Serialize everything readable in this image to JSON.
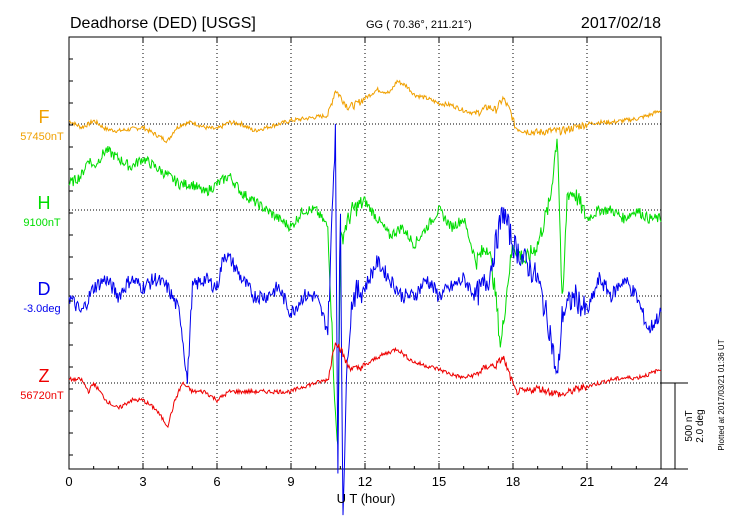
{
  "chart_data": {
    "type": "line",
    "title": "Deadhorse (DED)  [USGS]",
    "coords": "GG ( 70.36°, 211.21°)",
    "date": "2017/02/18",
    "xlabel": "U T (hour)",
    "xlim": [
      0,
      24
    ],
    "xticks": [
      0,
      3,
      6,
      9,
      12,
      15,
      18,
      21,
      24
    ],
    "xtick_labels": [
      "0",
      "3",
      "6",
      "9",
      "12",
      "15",
      "18",
      "21",
      "24"
    ],
    "grid": "dotted vertical lines every 3 hours; dotted horizontal baseline per component",
    "scale_bar_label_1": "500 nT",
    "scale_bar_label_2": "2.0 deg",
    "plot_note": "Plotted at 2017/03/21 01:36 UT",
    "series": [
      {
        "name": "F",
        "baseline_label": "57450nT",
        "color": "#f0a000",
        "x": [
          0,
          0.5,
          0.8,
          1,
          1.5,
          2,
          2.5,
          3,
          3.5,
          4,
          4.3,
          4.6,
          5,
          5.5,
          6,
          6.5,
          7,
          7.5,
          8,
          8.5,
          9,
          9.5,
          10,
          10.5,
          10.8,
          11,
          11.3,
          11.6,
          12,
          12.5,
          13,
          13.3,
          13.7,
          14,
          14.5,
          15,
          15.5,
          16,
          16.5,
          17,
          17.3,
          17.6,
          17.9,
          18.1,
          18.5,
          19,
          19.5,
          20,
          20.5,
          21,
          21.5,
          22,
          22.5,
          23,
          23.5,
          24
        ],
        "y": [
          20,
          -20,
          0,
          20,
          -30,
          -40,
          -30,
          -20,
          -60,
          -100,
          -30,
          0,
          10,
          -20,
          -30,
          10,
          0,
          -40,
          -20,
          0,
          20,
          30,
          40,
          50,
          200,
          160,
          100,
          110,
          150,
          200,
          180,
          250,
          220,
          170,
          150,
          120,
          110,
          80,
          60,
          100,
          80,
          150,
          70,
          -20,
          -40,
          -50,
          -40,
          -40,
          -20,
          0,
          10,
          10,
          20,
          30,
          50,
          80
        ]
      },
      {
        "name": "H",
        "baseline_label": "9100nT",
        "color": "#00dd00",
        "x": [
          0,
          0.5,
          0.8,
          1,
          1.5,
          2,
          2.5,
          3,
          3.5,
          4,
          4.5,
          5,
          5.5,
          6,
          6.5,
          7,
          7.5,
          8,
          8.5,
          9,
          9.5,
          10,
          10.5,
          10.8,
          10.9,
          11,
          11.2,
          11.5,
          12,
          12.5,
          13,
          13.5,
          14,
          14.5,
          15,
          15.5,
          16,
          16.5,
          17,
          17.3,
          17.5,
          17.8,
          18,
          18.5,
          19,
          19.5,
          19.8,
          20,
          20.2,
          20.5,
          21,
          21.5,
          22,
          22.5,
          23,
          23.5,
          24
        ],
        "y": [
          150,
          200,
          300,
          250,
          350,
          300,
          250,
          300,
          250,
          200,
          150,
          150,
          100,
          150,
          200,
          100,
          50,
          0,
          -50,
          -100,
          0,
          0,
          -100,
          -1200,
          -1400,
          -200,
          -100,
          0,
          50,
          -50,
          -150,
          -100,
          -200,
          -100,
          0,
          -100,
          -50,
          -300,
          -200,
          -500,
          -800,
          -400,
          -200,
          -300,
          -200,
          50,
          450,
          -600,
          100,
          100,
          -50,
          0,
          0,
          -50,
          0,
          -50,
          -50
        ]
      },
      {
        "name": "D",
        "baseline_label": "-3.0deg",
        "color": "#0000ee",
        "x": [
          0,
          0.5,
          1,
          1.5,
          2,
          2.5,
          3,
          3.5,
          4,
          4.5,
          4.8,
          5,
          5.5,
          6,
          6.3,
          6.6,
          7,
          7.5,
          8,
          8.5,
          9,
          9.5,
          10,
          10.5,
          10.8,
          10.9,
          11,
          11.1,
          11.3,
          11.5,
          12,
          12.5,
          13,
          13.5,
          14,
          14.5,
          15,
          15.5,
          16,
          16.5,
          17,
          17.3,
          17.6,
          18,
          18.5,
          19,
          19.5,
          19.8,
          20,
          20.5,
          21,
          21.5,
          22,
          22.5,
          23,
          23.5,
          24
        ],
        "y": [
          0,
          -0.4,
          0.2,
          0.4,
          0,
          0.4,
          0.2,
          0.4,
          0.2,
          -0.4,
          -2.0,
          0.2,
          0.4,
          0.2,
          1.0,
          0.8,
          0.4,
          0,
          0,
          0.2,
          -0.4,
          0,
          0,
          -0.8,
          4.0,
          -4.0,
          2.4,
          -5.0,
          -1.2,
          0,
          0.2,
          0.8,
          0.4,
          0,
          0,
          0.4,
          0,
          0.2,
          0.4,
          0,
          0.4,
          1.2,
          2.0,
          1.2,
          0.8,
          0.4,
          -0.8,
          -2.0,
          -0.4,
          0,
          -0.4,
          0.4,
          0,
          0.4,
          0,
          -0.8,
          -0.4
        ]
      },
      {
        "name": "Z",
        "baseline_label": "56720nT",
        "color": "#ee0000",
        "x": [
          0,
          0.5,
          0.8,
          1,
          1.5,
          2,
          2.5,
          3,
          3.5,
          4,
          4.3,
          4.6,
          5,
          5.5,
          6,
          6.5,
          7,
          7.5,
          8,
          8.5,
          9,
          9.5,
          10,
          10.5,
          10.8,
          11,
          11.3,
          11.6,
          12,
          12.5,
          13,
          13.3,
          13.7,
          14,
          14.5,
          15,
          15.5,
          16,
          16.5,
          17,
          17.3,
          17.6,
          17.9,
          18.1,
          18.5,
          19,
          19.5,
          20,
          20.5,
          21,
          21.5,
          22,
          22.5,
          23,
          23.5,
          24
        ],
        "y": [
          20,
          20,
          -50,
          0,
          -100,
          -150,
          -100,
          -100,
          -150,
          -250,
          -100,
          0,
          -50,
          -50,
          -100,
          -50,
          -50,
          -50,
          -50,
          -50,
          -50,
          -20,
          0,
          20,
          250,
          200,
          100,
          80,
          100,
          150,
          180,
          200,
          150,
          120,
          100,
          80,
          50,
          30,
          50,
          100,
          100,
          150,
          30,
          -50,
          -50,
          -30,
          -50,
          -70,
          -40,
          -20,
          0,
          20,
          30,
          30,
          50,
          80
        ]
      }
    ]
  }
}
